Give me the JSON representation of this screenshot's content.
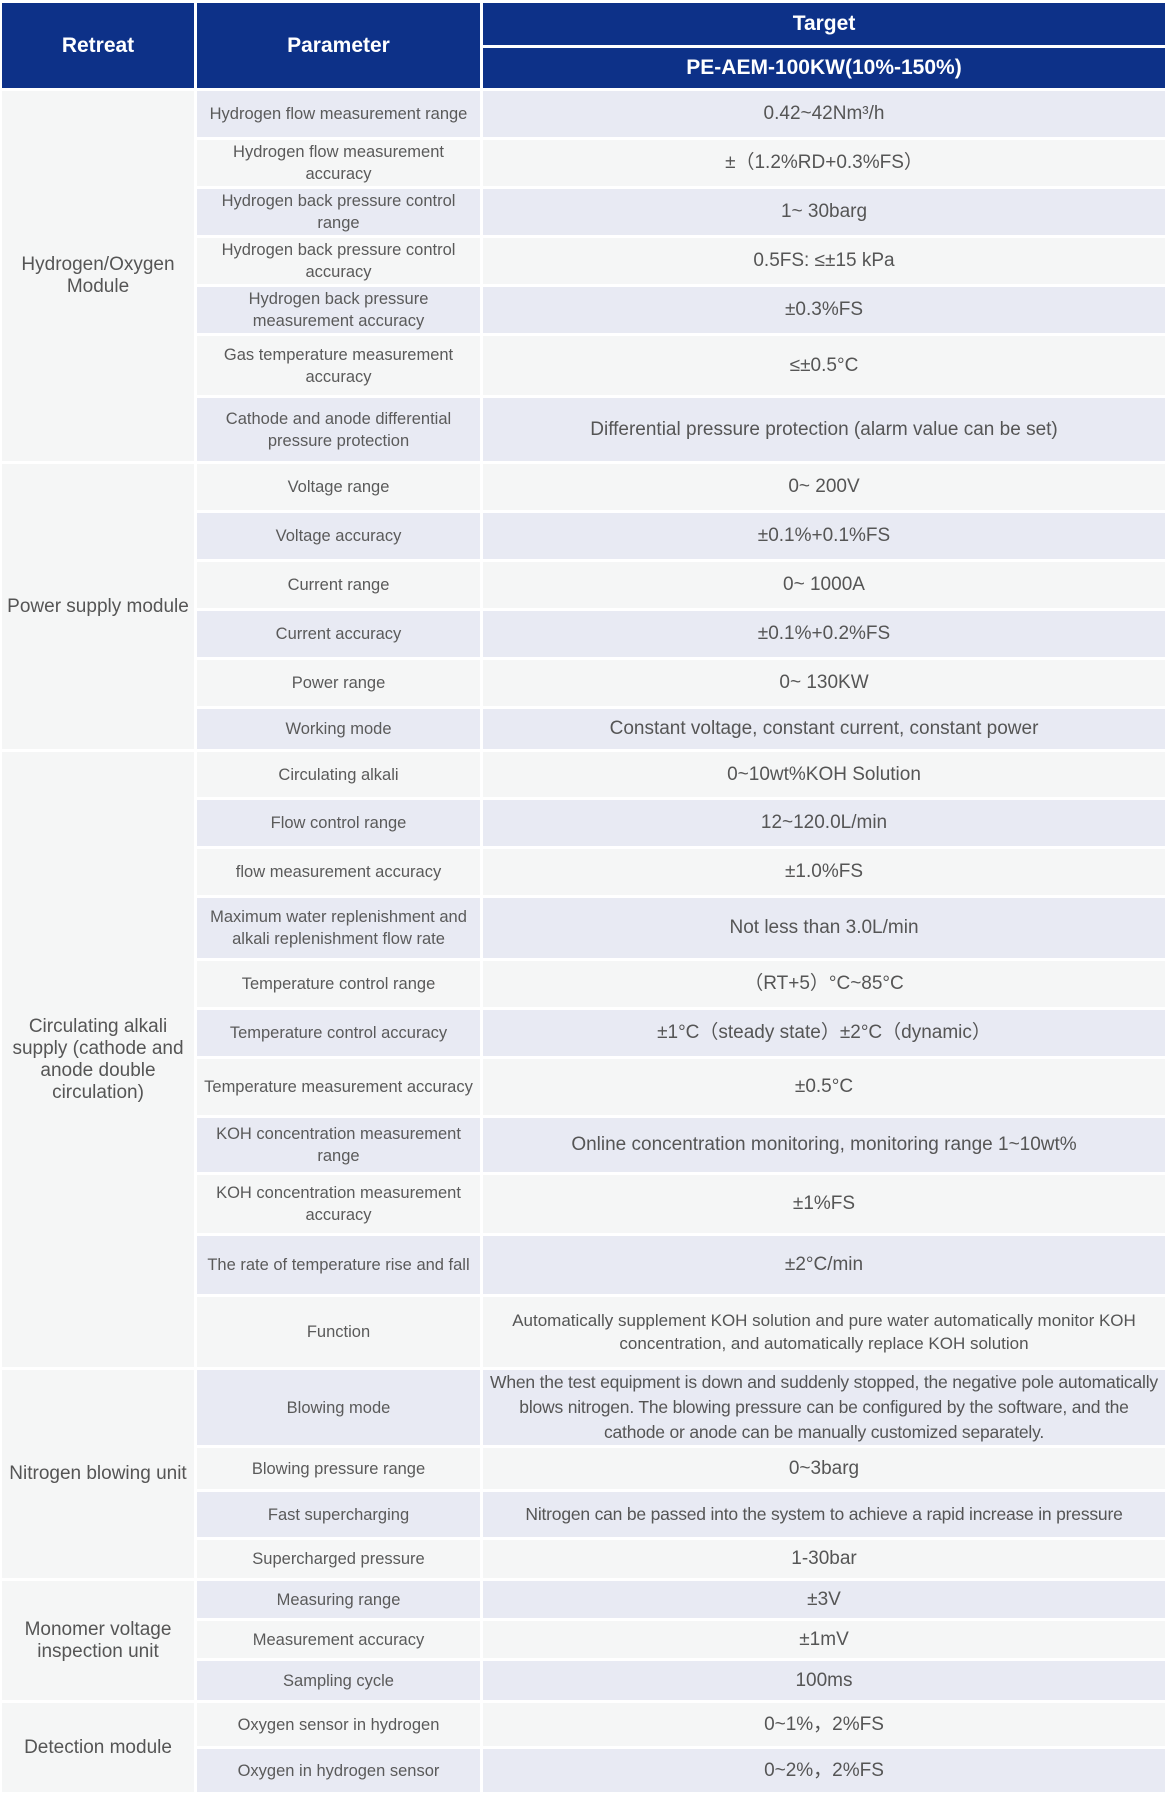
{
  "header": {
    "retreat": "Retreat",
    "parameter": "Parameter",
    "target": "Target",
    "model": "PE-AEM-100KW(10%-150%)"
  },
  "colors": {
    "header_bg": "#0d3188",
    "row_alt": "#e8eaf3",
    "row_base": "#f5f6f6"
  },
  "sections": [
    {
      "name": "Hydrogen/Oxygen Module",
      "rows": [
        {
          "parameter": "Hydrogen flow measurement range",
          "value": "0.42~42Nm³/h"
        },
        {
          "parameter": "Hydrogen flow measurement accuracy",
          "value": "±（1.2%RD+0.3%FS）"
        },
        {
          "parameter": "Hydrogen back pressure control range",
          "value": "1~ 30barg"
        },
        {
          "parameter": "Hydrogen back pressure control accuracy",
          "value": "0.5FS: ≤±15 kPa"
        },
        {
          "parameter": "Hydrogen back pressure measurement accuracy",
          "value": "±0.3%FS"
        },
        {
          "parameter": "Gas temperature measurement accuracy",
          "value": "≤±0.5°C"
        },
        {
          "parameter": "Cathode and anode differential pressure protection",
          "value": "Differential pressure protection (alarm value can be set)"
        }
      ]
    },
    {
      "name": "Power supply module",
      "rows": [
        {
          "parameter": "Voltage range",
          "value": "0~ 200V"
        },
        {
          "parameter": "Voltage accuracy",
          "value": "±0.1%+0.1%FS"
        },
        {
          "parameter": "Current range",
          "value": "0~ 1000A"
        },
        {
          "parameter": "Current  accuracy",
          "value": "±0.1%+0.2%FS"
        },
        {
          "parameter": "Power range",
          "value": "0~ 130KW"
        },
        {
          "parameter": "Working mode",
          "value": "Constant voltage, constant current, constant power"
        }
      ]
    },
    {
      "name": "Circulating alkali supply (cathode and anode double circulation)",
      "rows": [
        {
          "parameter": "Circulating alkali",
          "value": "0~10wt%KOH Solution"
        },
        {
          "parameter": "Flow control range",
          "value": "12~120.0L/min"
        },
        {
          "parameter": "flow measurement accuracy",
          "value": "±1.0%FS"
        },
        {
          "parameter": "Maximum water replenishment and alkali replenishment flow rate",
          "value": "Not less than 3.0L/min"
        },
        {
          "parameter": "Temperature control range",
          "value": "（RT+5）°C~85°C"
        },
        {
          "parameter": "Temperature control accuracy",
          "value": "±1°C（steady state）±2°C（dynamic）"
        },
        {
          "parameter": "Temperature measurement accuracy",
          "value": "±0.5°C"
        },
        {
          "parameter": "KOH concentration measurement range",
          "value": "Online concentration monitoring, monitoring range 1~10wt%"
        },
        {
          "parameter": "KOH concentration measurement accuracy",
          "value": "±1%FS"
        },
        {
          "parameter": "The rate of temperature rise and fall",
          "value": "±2°C/min"
        },
        {
          "parameter": "Function",
          "value": "Automatically supplement KOH solution and pure water automatically monitor KOH concentration, and automatically replace KOH solution"
        }
      ]
    },
    {
      "name": "Nitrogen blowing unit",
      "rows": [
        {
          "parameter": "Blowing mode",
          "value": "When the test equipment is down and suddenly stopped, the negative pole automatically blows nitrogen. The blowing pressure can be configured by the software, and the cathode or anode can be manually customized separately."
        },
        {
          "parameter": "Blowing pressure range",
          "value": "0~3barg"
        },
        {
          "parameter": "Fast supercharging",
          "value": "Nitrogen can be passed into the system to achieve a rapid increase in pressure"
        },
        {
          "parameter": "Supercharged pressure",
          "value": "1-30bar"
        }
      ]
    },
    {
      "name": "Monomer voltage inspection unit",
      "rows": [
        {
          "parameter": "Measuring range",
          "value": "±3V"
        },
        {
          "parameter": "Measurement accuracy",
          "value": "±1mV"
        },
        {
          "parameter": "Sampling cycle",
          "value": "100ms"
        }
      ]
    },
    {
      "name": "Detection module",
      "rows": [
        {
          "parameter": "Oxygen sensor in hydrogen",
          "value": "0~1%，2%FS"
        },
        {
          "parameter": "Oxygen in hydrogen sensor",
          "value": "0~2%，2%FS"
        }
      ]
    }
  ]
}
